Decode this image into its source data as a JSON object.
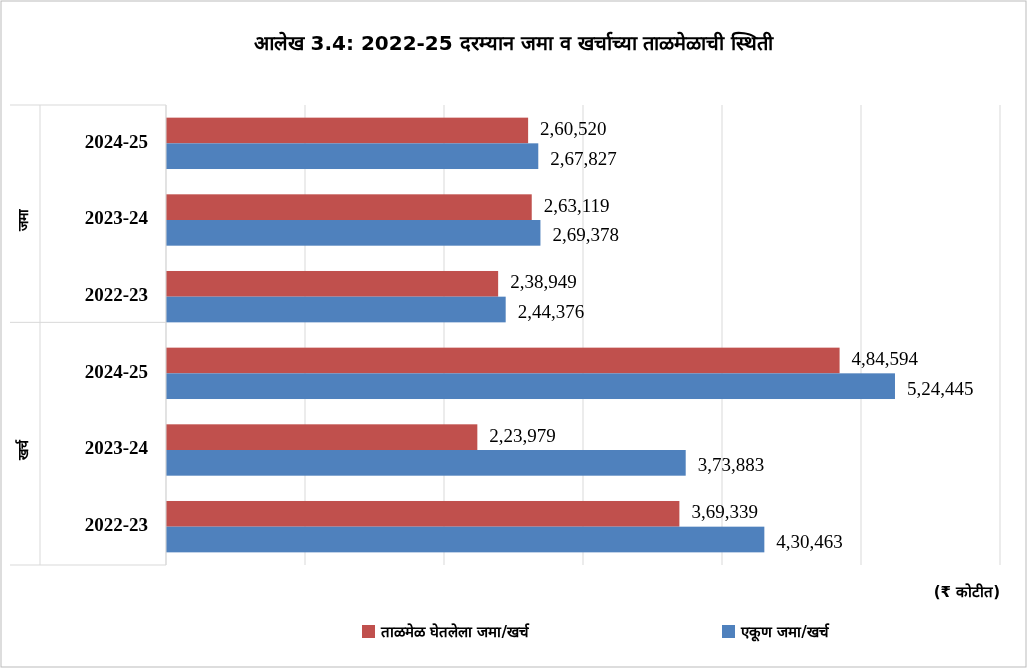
{
  "chart_data": {
    "type": "bar",
    "orientation": "horizontal",
    "title": "आलेख 3.4: 2022-25 दरम्यान जमा व खर्चाच्या ताळमेळाची स्थिती",
    "categories": [
      "2024-25",
      "2023-24",
      "2022-23",
      "2024-25",
      "2023-24",
      "2022-23"
    ],
    "series": [
      {
        "name": "ताळमेळ घेतलेला जमा/खर्च",
        "color": "#c0504d",
        "values": [
          260520,
          263119,
          238949,
          484594,
          223979,
          369339
        ],
        "value_labels": [
          "2,60,520",
          "2,63,119",
          "2,38,949",
          "4,84,594",
          "2,23,979",
          "3,69,339"
        ]
      },
      {
        "name": "एकूण जमा/खर्च",
        "color": "#4f81bd",
        "values": [
          267827,
          269378,
          244376,
          524445,
          373883,
          430463
        ],
        "value_labels": [
          "2,67,827",
          "2,69,378",
          "2,44,376",
          "5,24,445",
          "3,73,883",
          "4,30,463"
        ]
      }
    ],
    "xlim": [
      0,
      600000
    ],
    "xticks": [
      {
        "value": 0,
        "label": null
      },
      {
        "value": 100000,
        "label": null
      },
      {
        "value": 200000,
        "label": null
      },
      {
        "value": 300000,
        "label": null
      },
      {
        "value": 400000,
        "label": null
      },
      {
        "value": 500000,
        "label": null
      },
      {
        "value": 600000,
        "label": null
      }
    ],
    "tick_labels": "y",
    "grid": "x",
    "legend": "bottom",
    "annotations": [
      "जमा",
      "खर्च",
      "(₹ कोटीत)"
    ]
  }
}
